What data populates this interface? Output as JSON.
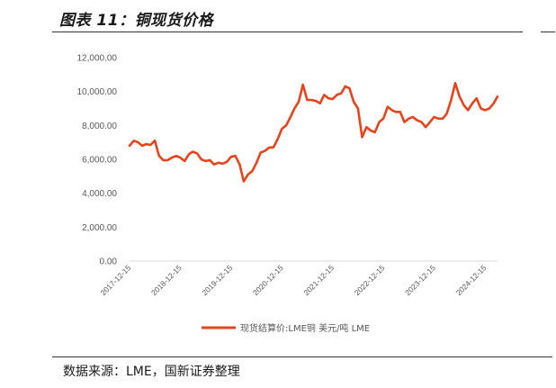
{
  "header": {
    "title": "图表 11：铜现货价格"
  },
  "footer": {
    "source": "数据来源：LME，国新证券整理"
  },
  "colors": {
    "series": "#E8441B",
    "axis": "#d9d9d9",
    "text": "#595959"
  },
  "chart_data": {
    "type": "line",
    "title": "",
    "xlabel": "",
    "ylabel": "",
    "ylim": [
      0,
      12000
    ],
    "yticks": [
      "0.00",
      "2,000.00",
      "4,000.00",
      "6,000.00",
      "8,000.00",
      "10,000.00",
      "12,000.00"
    ],
    "ytick_values": [
      0,
      2000,
      4000,
      6000,
      8000,
      10000,
      12000
    ],
    "xlim": [
      "2017-12-15",
      "2025-03-15"
    ],
    "xticks": [
      "2017-12-15",
      "2018-12-15",
      "2019-12-15",
      "2020-12-15",
      "2021-12-15",
      "2022-12-15",
      "2023-12-15",
      "2024-12-15"
    ],
    "grid": false,
    "legend_position": "bottom",
    "series": [
      {
        "name": "现货结算价:LME铜 美元/吨 LME",
        "points": [
          [
            "2017-12-15",
            6800
          ],
          [
            "2018-01-15",
            7100
          ],
          [
            "2018-02-15",
            7000
          ],
          [
            "2018-03-15",
            6800
          ],
          [
            "2018-04-15",
            6900
          ],
          [
            "2018-05-15",
            6850
          ],
          [
            "2018-06-15",
            7100
          ],
          [
            "2018-07-15",
            6200
          ],
          [
            "2018-08-15",
            5950
          ],
          [
            "2018-09-15",
            5950
          ],
          [
            "2018-10-15",
            6100
          ],
          [
            "2018-11-15",
            6200
          ],
          [
            "2018-12-15",
            6100
          ],
          [
            "2019-01-15",
            5900
          ],
          [
            "2019-02-15",
            6300
          ],
          [
            "2019-03-15",
            6450
          ],
          [
            "2019-04-15",
            6350
          ],
          [
            "2019-05-15",
            6000
          ],
          [
            "2019-06-15",
            5900
          ],
          [
            "2019-07-15",
            5950
          ],
          [
            "2019-08-15",
            5700
          ],
          [
            "2019-09-15",
            5800
          ],
          [
            "2019-10-15",
            5750
          ],
          [
            "2019-11-15",
            5850
          ],
          [
            "2019-12-15",
            6150
          ],
          [
            "2020-01-15",
            6200
          ],
          [
            "2020-02-15",
            5700
          ],
          [
            "2020-03-15",
            4700
          ],
          [
            "2020-04-15",
            5100
          ],
          [
            "2020-05-15",
            5300
          ],
          [
            "2020-06-15",
            5800
          ],
          [
            "2020-07-15",
            6400
          ],
          [
            "2020-08-15",
            6500
          ],
          [
            "2020-09-15",
            6700
          ],
          [
            "2020-10-15",
            6700
          ],
          [
            "2020-11-15",
            7200
          ],
          [
            "2020-12-15",
            7800
          ],
          [
            "2021-01-15",
            8000
          ],
          [
            "2021-02-15",
            8500
          ],
          [
            "2021-03-15",
            9000
          ],
          [
            "2021-04-15",
            9400
          ],
          [
            "2021-05-15",
            10400
          ],
          [
            "2021-06-15",
            9500
          ],
          [
            "2021-07-15",
            9500
          ],
          [
            "2021-08-15",
            9450
          ],
          [
            "2021-09-15",
            9300
          ],
          [
            "2021-10-15",
            9800
          ],
          [
            "2021-11-15",
            9600
          ],
          [
            "2021-12-15",
            9550
          ],
          [
            "2022-01-15",
            9800
          ],
          [
            "2022-02-15",
            9900
          ],
          [
            "2022-03-15",
            10300
          ],
          [
            "2022-04-15",
            10200
          ],
          [
            "2022-05-15",
            9400
          ],
          [
            "2022-06-15",
            9000
          ],
          [
            "2022-07-15",
            7300
          ],
          [
            "2022-08-15",
            7900
          ],
          [
            "2022-09-15",
            7700
          ],
          [
            "2022-10-15",
            7600
          ],
          [
            "2022-11-15",
            8200
          ],
          [
            "2022-12-15",
            8400
          ],
          [
            "2023-01-15",
            9100
          ],
          [
            "2023-02-15",
            8900
          ],
          [
            "2023-03-15",
            8800
          ],
          [
            "2023-04-15",
            8800
          ],
          [
            "2023-05-15",
            8200
          ],
          [
            "2023-06-15",
            8400
          ],
          [
            "2023-07-15",
            8500
          ],
          [
            "2023-08-15",
            8300
          ],
          [
            "2023-09-15",
            8200
          ],
          [
            "2023-10-15",
            7900
          ],
          [
            "2023-11-15",
            8200
          ],
          [
            "2023-12-15",
            8500
          ],
          [
            "2024-01-15",
            8400
          ],
          [
            "2024-02-15",
            8400
          ],
          [
            "2024-03-15",
            8700
          ],
          [
            "2024-04-15",
            9500
          ],
          [
            "2024-05-15",
            10500
          ],
          [
            "2024-06-15",
            9700
          ],
          [
            "2024-07-15",
            9200
          ],
          [
            "2024-08-15",
            8900
          ],
          [
            "2024-09-15",
            9300
          ],
          [
            "2024-10-15",
            9600
          ],
          [
            "2024-11-15",
            9000
          ],
          [
            "2024-12-15",
            8900
          ],
          [
            "2025-01-15",
            9000
          ],
          [
            "2025-02-15",
            9300
          ],
          [
            "2025-03-15",
            9700
          ]
        ]
      }
    ]
  }
}
